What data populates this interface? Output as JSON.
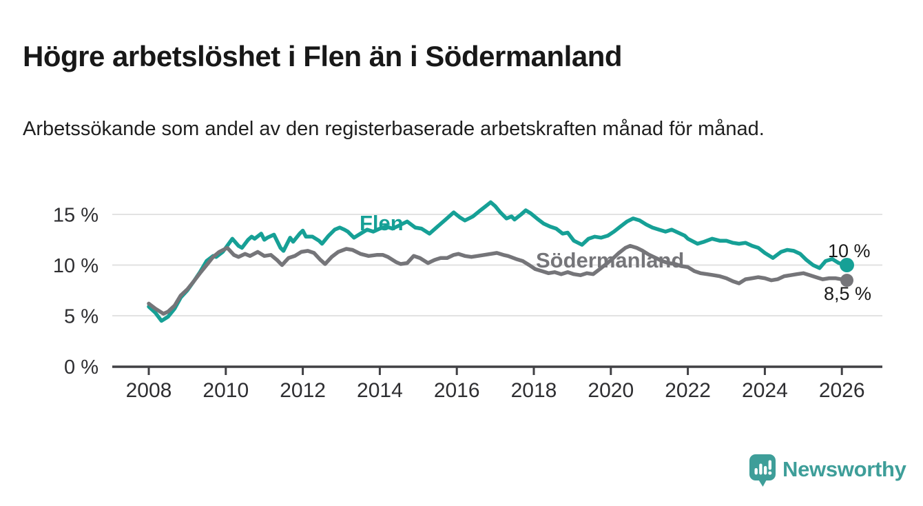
{
  "header": {
    "title": "Högre arbetslöshet i Flen än i Södermanland",
    "subtitle": "Arbetssökande som andel av den registerbaserade arbetskraften månad för månad."
  },
  "chart_data": {
    "type": "line",
    "unit": "percent of registered labour force, monthly",
    "grid": true,
    "legend_position": "inline-labels-on-lines",
    "x_axis": {
      "range": [
        2007.9,
        2027.0
      ],
      "ticks": [
        2008,
        2010,
        2012,
        2014,
        2016,
        2018,
        2020,
        2022,
        2024,
        2026
      ]
    },
    "y_axis": {
      "range": [
        0,
        16.5
      ],
      "ticks": [
        {
          "label": "0 %",
          "value": 0
        },
        {
          "label": "5 %",
          "value": 5
        },
        {
          "label": "10 %",
          "value": 10
        },
        {
          "label": "15 %",
          "value": 15
        }
      ]
    },
    "series": [
      {
        "name": "Flen",
        "color": "#16A096",
        "end_label": "10 %",
        "end_value": 10.0,
        "points": [
          [
            2008.0,
            5.9
          ],
          [
            2008.17,
            5.3
          ],
          [
            2008.33,
            4.5
          ],
          [
            2008.5,
            4.9
          ],
          [
            2008.67,
            5.7
          ],
          [
            2008.83,
            6.8
          ],
          [
            2009.0,
            7.5
          ],
          [
            2009.17,
            8.4
          ],
          [
            2009.33,
            9.3
          ],
          [
            2009.5,
            10.4
          ],
          [
            2009.67,
            10.9
          ],
          [
            2009.75,
            10.8
          ],
          [
            2009.92,
            11.3
          ],
          [
            2010.0,
            11.7
          ],
          [
            2010.17,
            12.6
          ],
          [
            2010.33,
            11.9
          ],
          [
            2010.42,
            11.7
          ],
          [
            2010.58,
            12.5
          ],
          [
            2010.67,
            12.8
          ],
          [
            2010.75,
            12.6
          ],
          [
            2010.92,
            13.1
          ],
          [
            2011.0,
            12.5
          ],
          [
            2011.08,
            12.7
          ],
          [
            2011.25,
            13.0
          ],
          [
            2011.42,
            11.7
          ],
          [
            2011.5,
            11.4
          ],
          [
            2011.67,
            12.7
          ],
          [
            2011.75,
            12.3
          ],
          [
            2011.92,
            13.1
          ],
          [
            2012.0,
            13.4
          ],
          [
            2012.08,
            12.8
          ],
          [
            2012.25,
            12.8
          ],
          [
            2012.42,
            12.4
          ],
          [
            2012.5,
            12.1
          ],
          [
            2012.67,
            12.9
          ],
          [
            2012.83,
            13.5
          ],
          [
            2012.96,
            13.7
          ],
          [
            2013.08,
            13.5
          ],
          [
            2013.17,
            13.3
          ],
          [
            2013.33,
            12.7
          ],
          [
            2013.5,
            13.1
          ],
          [
            2013.67,
            13.5
          ],
          [
            2013.83,
            13.3
          ],
          [
            2014.0,
            13.6
          ],
          [
            2014.17,
            13.8
          ],
          [
            2014.33,
            13.6
          ],
          [
            2014.5,
            13.9
          ],
          [
            2014.71,
            14.3
          ],
          [
            2014.92,
            13.7
          ],
          [
            2015.08,
            13.6
          ],
          [
            2015.29,
            13.1
          ],
          [
            2015.5,
            13.8
          ],
          [
            2015.71,
            14.5
          ],
          [
            2015.92,
            15.2
          ],
          [
            2016.08,
            14.7
          ],
          [
            2016.21,
            14.4
          ],
          [
            2016.42,
            14.8
          ],
          [
            2016.58,
            15.3
          ],
          [
            2016.75,
            15.8
          ],
          [
            2016.88,
            16.2
          ],
          [
            2017.0,
            15.8
          ],
          [
            2017.13,
            15.2
          ],
          [
            2017.29,
            14.6
          ],
          [
            2017.42,
            14.8
          ],
          [
            2017.5,
            14.5
          ],
          [
            2017.67,
            15.0
          ],
          [
            2017.79,
            15.4
          ],
          [
            2017.92,
            15.1
          ],
          [
            2018.08,
            14.6
          ],
          [
            2018.25,
            14.1
          ],
          [
            2018.42,
            13.8
          ],
          [
            2018.58,
            13.6
          ],
          [
            2018.75,
            13.1
          ],
          [
            2018.88,
            13.2
          ],
          [
            2019.04,
            12.4
          ],
          [
            2019.25,
            12.0
          ],
          [
            2019.42,
            12.6
          ],
          [
            2019.58,
            12.8
          ],
          [
            2019.75,
            12.7
          ],
          [
            2019.92,
            12.9
          ],
          [
            2020.08,
            13.3
          ],
          [
            2020.25,
            13.8
          ],
          [
            2020.42,
            14.3
          ],
          [
            2020.58,
            14.6
          ],
          [
            2020.75,
            14.4
          ],
          [
            2020.92,
            14.0
          ],
          [
            2021.08,
            13.7
          ],
          [
            2021.25,
            13.5
          ],
          [
            2021.42,
            13.3
          ],
          [
            2021.58,
            13.5
          ],
          [
            2021.75,
            13.2
          ],
          [
            2021.92,
            12.9
          ],
          [
            2022.0,
            12.6
          ],
          [
            2022.25,
            12.1
          ],
          [
            2022.42,
            12.3
          ],
          [
            2022.63,
            12.6
          ],
          [
            2022.83,
            12.4
          ],
          [
            2023.0,
            12.4
          ],
          [
            2023.17,
            12.2
          ],
          [
            2023.33,
            12.1
          ],
          [
            2023.5,
            12.2
          ],
          [
            2023.67,
            11.9
          ],
          [
            2023.83,
            11.7
          ],
          [
            2024.0,
            11.2
          ],
          [
            2024.21,
            10.7
          ],
          [
            2024.42,
            11.3
          ],
          [
            2024.58,
            11.5
          ],
          [
            2024.75,
            11.4
          ],
          [
            2024.92,
            11.1
          ],
          [
            2025.08,
            10.5
          ],
          [
            2025.25,
            10.0
          ],
          [
            2025.42,
            9.7
          ],
          [
            2025.58,
            10.4
          ],
          [
            2025.75,
            10.6
          ],
          [
            2025.92,
            10.2
          ],
          [
            2026.13,
            10.0
          ]
        ]
      },
      {
        "name": "Södermanland",
        "color": "#757579",
        "end_label": "8,5 %",
        "end_value": 8.5,
        "points": [
          [
            2008.0,
            6.2
          ],
          [
            2008.17,
            5.7
          ],
          [
            2008.38,
            5.2
          ],
          [
            2008.5,
            5.4
          ],
          [
            2008.67,
            6.0
          ],
          [
            2008.83,
            7.0
          ],
          [
            2009.0,
            7.6
          ],
          [
            2009.17,
            8.4
          ],
          [
            2009.33,
            9.2
          ],
          [
            2009.5,
            10.0
          ],
          [
            2009.67,
            10.8
          ],
          [
            2009.83,
            11.3
          ],
          [
            2010.04,
            11.7
          ],
          [
            2010.21,
            11.0
          ],
          [
            2010.33,
            10.8
          ],
          [
            2010.5,
            11.1
          ],
          [
            2010.63,
            10.9
          ],
          [
            2010.83,
            11.3
          ],
          [
            2011.0,
            10.9
          ],
          [
            2011.17,
            11.0
          ],
          [
            2011.33,
            10.5
          ],
          [
            2011.46,
            10.0
          ],
          [
            2011.63,
            10.7
          ],
          [
            2011.79,
            10.9
          ],
          [
            2011.96,
            11.3
          ],
          [
            2012.13,
            11.4
          ],
          [
            2012.29,
            11.2
          ],
          [
            2012.46,
            10.5
          ],
          [
            2012.58,
            10.1
          ],
          [
            2012.75,
            10.8
          ],
          [
            2012.92,
            11.3
          ],
          [
            2013.13,
            11.6
          ],
          [
            2013.29,
            11.5
          ],
          [
            2013.5,
            11.1
          ],
          [
            2013.71,
            10.9
          ],
          [
            2013.92,
            11.0
          ],
          [
            2014.08,
            11.0
          ],
          [
            2014.21,
            10.8
          ],
          [
            2014.42,
            10.3
          ],
          [
            2014.54,
            10.1
          ],
          [
            2014.71,
            10.2
          ],
          [
            2014.88,
            10.9
          ],
          [
            2015.04,
            10.7
          ],
          [
            2015.25,
            10.2
          ],
          [
            2015.42,
            10.5
          ],
          [
            2015.58,
            10.7
          ],
          [
            2015.75,
            10.7
          ],
          [
            2015.92,
            11.0
          ],
          [
            2016.04,
            11.1
          ],
          [
            2016.21,
            10.9
          ],
          [
            2016.38,
            10.8
          ],
          [
            2016.54,
            10.9
          ],
          [
            2016.71,
            11.0
          ],
          [
            2016.88,
            11.1
          ],
          [
            2017.04,
            11.2
          ],
          [
            2017.21,
            11.0
          ],
          [
            2017.33,
            10.9
          ],
          [
            2017.54,
            10.6
          ],
          [
            2017.71,
            10.4
          ],
          [
            2017.88,
            10.0
          ],
          [
            2018.04,
            9.6
          ],
          [
            2018.21,
            9.4
          ],
          [
            2018.38,
            9.2
          ],
          [
            2018.54,
            9.3
          ],
          [
            2018.71,
            9.1
          ],
          [
            2018.88,
            9.3
          ],
          [
            2019.04,
            9.1
          ],
          [
            2019.21,
            9.0
          ],
          [
            2019.38,
            9.2
          ],
          [
            2019.54,
            9.1
          ],
          [
            2019.71,
            9.6
          ],
          [
            2019.88,
            10.1
          ],
          [
            2020.04,
            10.6
          ],
          [
            2020.21,
            11.2
          ],
          [
            2020.38,
            11.7
          ],
          [
            2020.5,
            11.9
          ],
          [
            2020.67,
            11.7
          ],
          [
            2020.83,
            11.4
          ],
          [
            2021.0,
            11.0
          ],
          [
            2021.17,
            10.7
          ],
          [
            2021.33,
            10.4
          ],
          [
            2021.5,
            10.2
          ],
          [
            2021.67,
            10.1
          ],
          [
            2021.83,
            9.9
          ],
          [
            2022.0,
            9.8
          ],
          [
            2022.17,
            9.4
          ],
          [
            2022.33,
            9.2
          ],
          [
            2022.5,
            9.1
          ],
          [
            2022.67,
            9.0
          ],
          [
            2022.83,
            8.9
          ],
          [
            2023.0,
            8.7
          ],
          [
            2023.17,
            8.4
          ],
          [
            2023.33,
            8.2
          ],
          [
            2023.5,
            8.6
          ],
          [
            2023.67,
            8.7
          ],
          [
            2023.83,
            8.8
          ],
          [
            2024.0,
            8.7
          ],
          [
            2024.17,
            8.5
          ],
          [
            2024.33,
            8.6
          ],
          [
            2024.5,
            8.9
          ],
          [
            2024.67,
            9.0
          ],
          [
            2024.83,
            9.1
          ],
          [
            2025.0,
            9.2
          ],
          [
            2025.17,
            9.0
          ],
          [
            2025.33,
            8.8
          ],
          [
            2025.5,
            8.6
          ],
          [
            2025.67,
            8.7
          ],
          [
            2025.83,
            8.7
          ],
          [
            2026.13,
            8.5
          ]
        ]
      }
    ]
  },
  "branding": {
    "logo_text": "Newsworthy",
    "logo_icon": "bar-chart-speech-bubble-icon",
    "logo_color": "#3E9E99"
  }
}
